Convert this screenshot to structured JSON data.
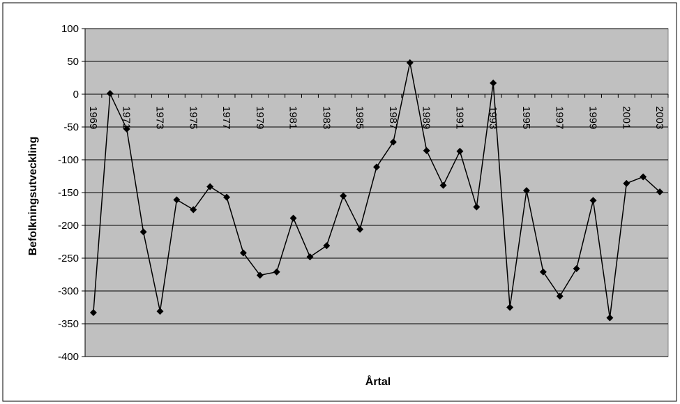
{
  "chart_data": {
    "type": "line",
    "title": "",
    "xlabel": "Årtal",
    "ylabel": "Befolkningsutveckling",
    "ylim": [
      -400,
      100
    ],
    "yticks": [
      100,
      50,
      0,
      -50,
      -100,
      -150,
      -200,
      -250,
      -300,
      -350,
      -400
    ],
    "grid": "horizontal",
    "plot_background": "#c0c0c0",
    "line_color": "#000000",
    "marker": "diamond",
    "x": [
      1969,
      1970,
      1971,
      1972,
      1973,
      1974,
      1975,
      1976,
      1977,
      1978,
      1979,
      1980,
      1981,
      1982,
      1983,
      1984,
      1985,
      1986,
      1987,
      1988,
      1989,
      1990,
      1991,
      1992,
      1993,
      1994,
      1995,
      1996,
      1997,
      1998,
      1999,
      2000,
      2001,
      2002,
      2003
    ],
    "x_tick_labels": [
      "1969",
      "1971",
      "1973",
      "1975",
      "1977",
      "1979",
      "1981",
      "1983",
      "1985",
      "1987",
      "1989",
      "1991",
      "1993",
      "1995",
      "1997",
      "1999",
      "2001",
      "2003"
    ],
    "series": [
      {
        "values": [
          -333,
          1,
          -53,
          -210,
          -331,
          -161,
          -176,
          -141,
          -157,
          -242,
          -276,
          -271,
          -189,
          -248,
          -231,
          -155,
          -206,
          -111,
          -73,
          48,
          -86,
          -139,
          -87,
          -172,
          17,
          -325,
          -147,
          -271,
          -308,
          -266,
          -162,
          -341,
          -136,
          -126,
          -149
        ]
      }
    ]
  }
}
